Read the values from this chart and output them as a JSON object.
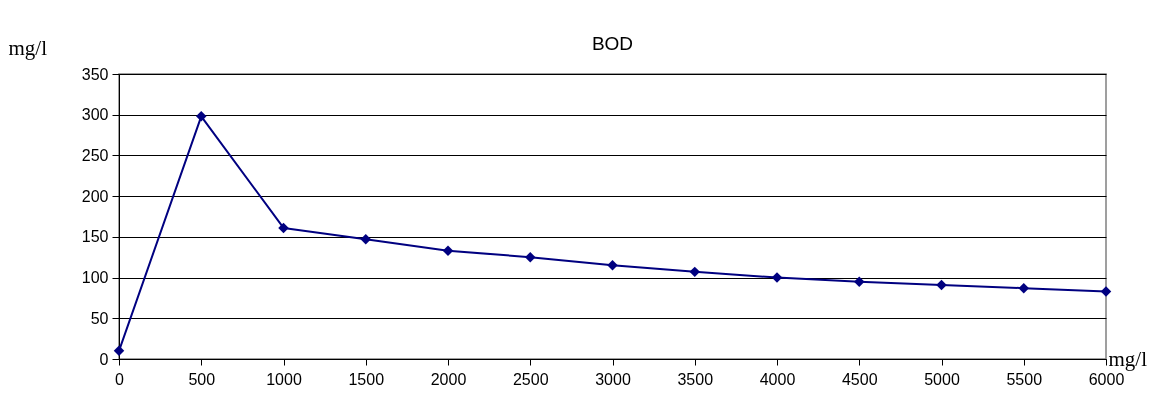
{
  "chart_data": {
    "type": "line",
    "title": "BOD",
    "xlabel": "mg/l",
    "ylabel": "mg/l",
    "x": [
      0,
      500,
      1000,
      1500,
      2000,
      2500,
      3000,
      3500,
      4000,
      4500,
      5000,
      5500,
      6000
    ],
    "series": [
      {
        "color": "#000080",
        "values": [
          10,
          298,
          161,
          147,
          133,
          125,
          115,
          107,
          100,
          95,
          91,
          87,
          83
        ]
      }
    ],
    "xlim": [
      0,
      6000
    ],
    "xticks": [
      0,
      500,
      1000,
      1500,
      2000,
      2500,
      3000,
      3500,
      4000,
      4500,
      5000,
      5500,
      6000
    ],
    "ylim": [
      0,
      350
    ],
    "yticks": [
      0,
      50,
      100,
      150,
      200,
      250,
      300,
      350
    ],
    "grid": "y",
    "legend": false,
    "marker": "diamond",
    "line_style": "solid"
  }
}
